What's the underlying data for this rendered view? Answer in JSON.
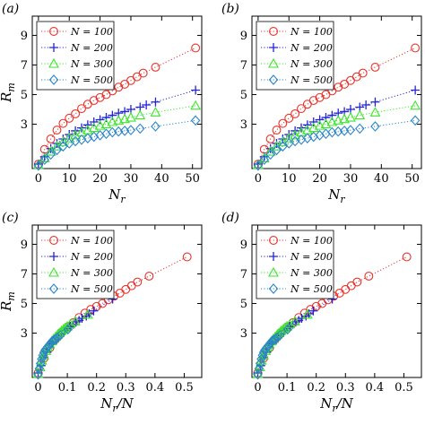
{
  "legend": {
    "entries": [
      {
        "label": "N = 100",
        "color": "#e8322b",
        "marker": "circle"
      },
      {
        "label": "N = 200",
        "color": "#2424d6",
        "marker": "plus"
      },
      {
        "label": "N = 300",
        "color": "#3ee62d",
        "marker": "triangle"
      },
      {
        "label": "N = 500",
        "color": "#2b86c8",
        "marker": "diamond"
      }
    ],
    "placement": "top-left"
  },
  "chart_data": [
    {
      "type": "scatter",
      "panel_label": "(a)",
      "xlabel": "N_r",
      "xlabel_main": "N",
      "xlabel_sub": "r",
      "xlabel_tail": "",
      "ylabel_main": "R",
      "ylabel_sub": "m",
      "xlim": [
        -2,
        53
      ],
      "ylim": [
        0,
        10.3
      ],
      "xticks": [
        0,
        10,
        20,
        30,
        40,
        50
      ],
      "yticks": [
        3,
        5,
        7,
        9
      ],
      "series": [
        {
          "name": "N = 100",
          "x": [
            0,
            2,
            4,
            6,
            8,
            10,
            12,
            14,
            16,
            18,
            20,
            22,
            24,
            26,
            28,
            30,
            32,
            34,
            38,
            51
          ],
          "y": [
            0.3,
            1.3,
            2.0,
            2.6,
            3.05,
            3.4,
            3.7,
            4.05,
            4.35,
            4.6,
            4.8,
            5.0,
            5.25,
            5.5,
            5.7,
            5.95,
            6.2,
            6.45,
            6.85,
            8.15
          ]
        },
        {
          "name": "N = 200",
          "x": [
            0,
            2,
            4,
            6,
            8,
            10,
            12,
            14,
            16,
            18,
            20,
            22,
            24,
            26,
            28,
            30,
            33,
            35,
            38,
            51
          ],
          "y": [
            0.3,
            0.8,
            1.35,
            1.7,
            2.0,
            2.3,
            2.55,
            2.75,
            2.95,
            3.15,
            3.3,
            3.45,
            3.6,
            3.75,
            3.85,
            4.0,
            4.15,
            4.3,
            4.5,
            5.3
          ]
        },
        {
          "name": "N = 300",
          "x": [
            0,
            2,
            4,
            6,
            8,
            10,
            12,
            14,
            16,
            18,
            20,
            22,
            24,
            26,
            28,
            30,
            33,
            38,
            51
          ],
          "y": [
            0.25,
            0.7,
            1.15,
            1.5,
            1.8,
            2.05,
            2.25,
            2.45,
            2.6,
            2.75,
            2.9,
            3.0,
            3.15,
            3.25,
            3.35,
            3.45,
            3.6,
            3.8,
            4.25
          ]
        },
        {
          "name": "N = 500",
          "x": [
            0,
            2,
            4,
            6,
            8,
            10,
            12,
            14,
            16,
            18,
            20,
            22,
            24,
            26,
            28,
            30,
            33,
            38,
            51
          ],
          "y": [
            0.2,
            0.6,
            0.95,
            1.25,
            1.5,
            1.7,
            1.85,
            1.95,
            2.05,
            2.15,
            2.25,
            2.35,
            2.45,
            2.5,
            2.55,
            2.6,
            2.7,
            2.85,
            3.25
          ]
        }
      ]
    },
    {
      "type": "scatter",
      "panel_label": "(b)",
      "xlabel": "N_r",
      "xlabel_main": "N",
      "xlabel_sub": "r",
      "xlabel_tail": "",
      "ylabel_main": "",
      "ylabel_sub": "",
      "xlim": [
        -2,
        53
      ],
      "ylim": [
        0,
        10.3
      ],
      "xticks": [
        0,
        10,
        20,
        30,
        40,
        50
      ],
      "yticks": [
        3,
        5,
        7,
        9
      ],
      "series": [
        {
          "name": "N = 100",
          "x": [
            0,
            2,
            4,
            6,
            8,
            10,
            12,
            14,
            16,
            18,
            20,
            22,
            24,
            26,
            28,
            30,
            32,
            34,
            38,
            51
          ],
          "y": [
            0.3,
            1.3,
            2.0,
            2.6,
            3.05,
            3.4,
            3.7,
            4.05,
            4.35,
            4.6,
            4.8,
            5.0,
            5.25,
            5.5,
            5.7,
            5.95,
            6.2,
            6.45,
            6.85,
            8.15
          ]
        },
        {
          "name": "N = 200",
          "x": [
            0,
            2,
            4,
            6,
            8,
            10,
            12,
            14,
            16,
            18,
            20,
            22,
            24,
            26,
            28,
            30,
            33,
            35,
            38,
            51
          ],
          "y": [
            0.3,
            0.8,
            1.35,
            1.7,
            2.0,
            2.3,
            2.55,
            2.75,
            2.95,
            3.15,
            3.3,
            3.45,
            3.6,
            3.75,
            3.85,
            4.0,
            4.15,
            4.3,
            4.5,
            5.3
          ]
        },
        {
          "name": "N = 300",
          "x": [
            0,
            2,
            4,
            6,
            8,
            10,
            12,
            14,
            16,
            18,
            20,
            22,
            24,
            26,
            28,
            30,
            33,
            38,
            51
          ],
          "y": [
            0.25,
            0.7,
            1.15,
            1.5,
            1.8,
            2.05,
            2.25,
            2.45,
            2.6,
            2.75,
            2.9,
            3.0,
            3.15,
            3.25,
            3.35,
            3.45,
            3.6,
            3.8,
            4.25
          ]
        },
        {
          "name": "N = 500",
          "x": [
            0,
            2,
            4,
            6,
            8,
            10,
            12,
            14,
            16,
            18,
            20,
            22,
            24,
            26,
            28,
            30,
            33,
            38,
            51
          ],
          "y": [
            0.2,
            0.6,
            0.95,
            1.25,
            1.5,
            1.7,
            1.85,
            1.95,
            2.05,
            2.15,
            2.25,
            2.35,
            2.45,
            2.5,
            2.55,
            2.6,
            2.7,
            2.85,
            3.25
          ]
        }
      ]
    },
    {
      "type": "scatter",
      "panel_label": "(c)",
      "xlabel": "N_r/N",
      "xlabel_main": "N",
      "xlabel_sub": "r",
      "xlabel_tail": "/N",
      "ylabel_main": "R",
      "ylabel_sub": "m",
      "xlim": [
        -0.02,
        0.56
      ],
      "ylim": [
        0,
        10.3
      ],
      "xticks": [
        0,
        0.1,
        0.2,
        0.3,
        0.4,
        0.5
      ],
      "yticks": [
        3,
        5,
        7,
        9
      ],
      "series": [
        {
          "name": "N = 100",
          "x": [
            0,
            0.02,
            0.04,
            0.06,
            0.08,
            0.1,
            0.12,
            0.14,
            0.16,
            0.18,
            0.2,
            0.22,
            0.24,
            0.26,
            0.28,
            0.3,
            0.32,
            0.34,
            0.38,
            0.51
          ],
          "y": [
            0.3,
            1.3,
            2.0,
            2.6,
            3.05,
            3.4,
            3.7,
            4.05,
            4.35,
            4.6,
            4.8,
            5.0,
            5.25,
            5.5,
            5.7,
            5.95,
            6.2,
            6.45,
            6.85,
            8.15
          ]
        },
        {
          "name": "N = 200",
          "x": [
            0,
            0.01,
            0.02,
            0.03,
            0.04,
            0.05,
            0.06,
            0.07,
            0.08,
            0.09,
            0.1,
            0.11,
            0.12,
            0.13,
            0.14,
            0.15,
            0.165,
            0.175,
            0.19,
            0.255
          ],
          "y": [
            0.3,
            0.8,
            1.35,
            1.7,
            2.0,
            2.3,
            2.55,
            2.75,
            2.95,
            3.15,
            3.3,
            3.45,
            3.6,
            3.75,
            3.85,
            4.0,
            4.15,
            4.3,
            4.5,
            5.3
          ]
        },
        {
          "name": "N = 300",
          "x": [
            0,
            0.007,
            0.013,
            0.02,
            0.027,
            0.033,
            0.04,
            0.047,
            0.053,
            0.06,
            0.067,
            0.073,
            0.08,
            0.087,
            0.093,
            0.1,
            0.11,
            0.127,
            0.17
          ],
          "y": [
            0.25,
            0.7,
            1.15,
            1.5,
            1.8,
            2.05,
            2.25,
            2.45,
            2.6,
            2.75,
            2.9,
            3.0,
            3.15,
            3.25,
            3.35,
            3.45,
            3.6,
            3.8,
            4.25
          ]
        },
        {
          "name": "N = 500",
          "x": [
            0,
            0.004,
            0.008,
            0.012,
            0.016,
            0.02,
            0.024,
            0.028,
            0.032,
            0.036,
            0.04,
            0.044,
            0.048,
            0.052,
            0.056,
            0.06,
            0.066,
            0.076,
            0.102
          ],
          "y": [
            0.2,
            0.6,
            0.95,
            1.25,
            1.5,
            1.7,
            1.85,
            1.95,
            2.05,
            2.15,
            2.25,
            2.35,
            2.45,
            2.5,
            2.55,
            2.6,
            2.7,
            2.85,
            3.25
          ]
        }
      ]
    },
    {
      "type": "scatter",
      "panel_label": "(d)",
      "xlabel": "N_r/N",
      "xlabel_main": "N",
      "xlabel_sub": "r",
      "xlabel_tail": "/N",
      "ylabel_main": "",
      "ylabel_sub": "",
      "xlim": [
        -0.02,
        0.56
      ],
      "ylim": [
        0,
        10.3
      ],
      "xticks": [
        0,
        0.1,
        0.2,
        0.3,
        0.4,
        0.5
      ],
      "yticks": [
        3,
        5,
        7,
        9
      ],
      "series": [
        {
          "name": "N = 100",
          "x": [
            0,
            0.02,
            0.04,
            0.06,
            0.08,
            0.1,
            0.12,
            0.14,
            0.16,
            0.18,
            0.2,
            0.22,
            0.24,
            0.26,
            0.28,
            0.3,
            0.32,
            0.34,
            0.38,
            0.51
          ],
          "y": [
            0.3,
            1.3,
            2.0,
            2.6,
            3.05,
            3.4,
            3.7,
            4.05,
            4.35,
            4.6,
            4.8,
            5.0,
            5.25,
            5.5,
            5.7,
            5.95,
            6.2,
            6.45,
            6.85,
            8.15
          ]
        },
        {
          "name": "N = 200",
          "x": [
            0,
            0.01,
            0.02,
            0.03,
            0.04,
            0.05,
            0.06,
            0.07,
            0.08,
            0.09,
            0.1,
            0.11,
            0.12,
            0.13,
            0.14,
            0.15,
            0.165,
            0.175,
            0.19,
            0.255
          ],
          "y": [
            0.3,
            0.8,
            1.35,
            1.7,
            2.0,
            2.3,
            2.55,
            2.75,
            2.95,
            3.15,
            3.3,
            3.45,
            3.6,
            3.75,
            3.85,
            4.0,
            4.15,
            4.3,
            4.5,
            5.3
          ]
        },
        {
          "name": "N = 300",
          "x": [
            0,
            0.007,
            0.013,
            0.02,
            0.027,
            0.033,
            0.04,
            0.047,
            0.053,
            0.06,
            0.067,
            0.073,
            0.08,
            0.087,
            0.093,
            0.1,
            0.11,
            0.127,
            0.17
          ],
          "y": [
            0.25,
            0.7,
            1.15,
            1.5,
            1.8,
            2.05,
            2.25,
            2.45,
            2.6,
            2.75,
            2.9,
            3.0,
            3.15,
            3.25,
            3.35,
            3.45,
            3.6,
            3.8,
            4.25
          ]
        },
        {
          "name": "N = 500",
          "x": [
            0,
            0.004,
            0.008,
            0.012,
            0.016,
            0.02,
            0.024,
            0.028,
            0.032,
            0.036,
            0.04,
            0.044,
            0.048,
            0.052,
            0.056,
            0.06,
            0.066,
            0.076,
            0.102
          ],
          "y": [
            0.2,
            0.6,
            0.95,
            1.25,
            1.5,
            1.7,
            1.85,
            1.95,
            2.05,
            2.15,
            2.25,
            2.35,
            2.45,
            2.5,
            2.55,
            2.6,
            2.7,
            2.85,
            3.25
          ]
        }
      ]
    }
  ]
}
